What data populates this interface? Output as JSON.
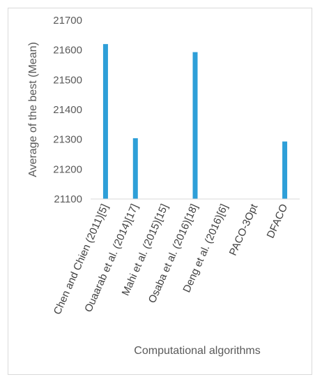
{
  "chart_data": {
    "type": "bar",
    "categories": [
      "Chen and Chien (2011)[5]",
      "Ouaarab et al. (2014)[17]",
      "Mahi et al. (2015)[15]",
      "Osaba et al. (2016)[18]",
      "Deng et al. (2016)[6]",
      "PACO-3Opt",
      "DFACO"
    ],
    "values": [
      21620,
      21304,
      null,
      21593,
      null,
      null,
      21293
    ],
    "title": "",
    "xlabel": "Computational algorithms",
    "ylabel": "Average of the best  (Mean)",
    "ylim": [
      21100,
      21700
    ],
    "yticks": [
      21100,
      21200,
      21300,
      21400,
      21500,
      21600,
      21700
    ],
    "grid": false,
    "legend": "none",
    "bar_color": "#2e9fd8"
  }
}
